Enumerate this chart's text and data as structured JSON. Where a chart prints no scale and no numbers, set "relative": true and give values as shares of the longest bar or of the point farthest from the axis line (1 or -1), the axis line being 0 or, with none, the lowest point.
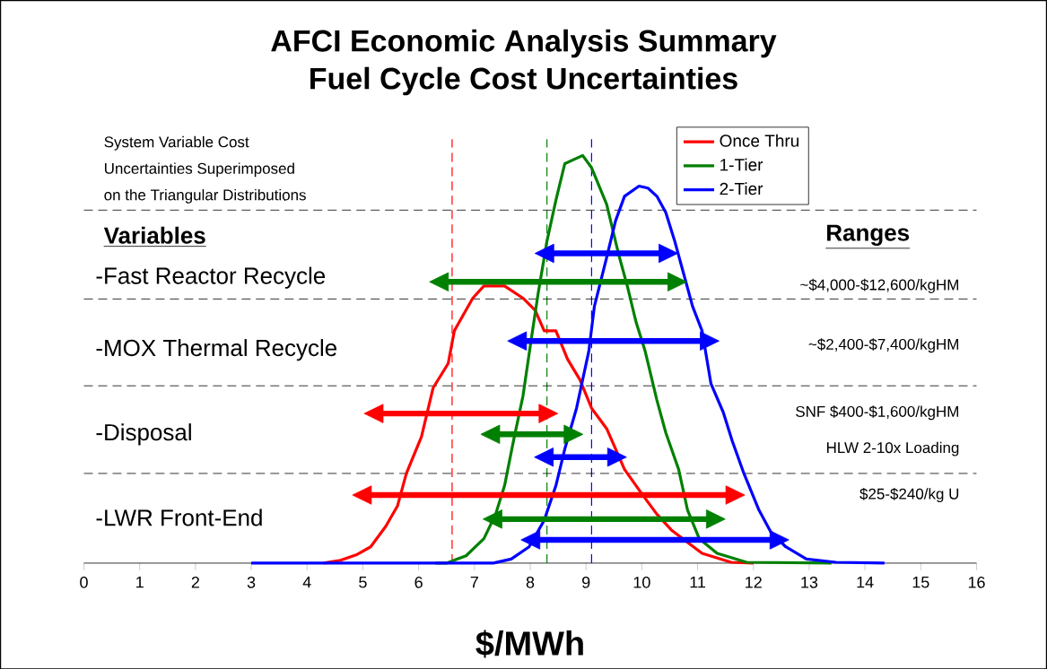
{
  "chart_data": {
    "type": "line",
    "title": "AFCI Economic Analysis Summary",
    "subtitle": "Fuel Cycle Cost Uncertainties",
    "xlabel": "$/MWh",
    "relative": true,
    "xlim": [
      0,
      16
    ],
    "xticks": [
      0,
      1,
      2,
      3,
      4,
      5,
      6,
      7,
      8,
      9,
      10,
      11,
      12,
      13,
      14,
      15,
      16
    ],
    "tick_labels": "x",
    "legend": "top",
    "grid": false,
    "marker": "none",
    "series": [
      {
        "name": "Once Thru",
        "color": "#ff0000",
        "x": [
          4.3,
          4.6,
          4.88,
          5.14,
          5.41,
          5.62,
          5.78,
          6.05,
          6.26,
          6.53,
          6.64,
          6.97,
          7.17,
          7.54,
          7.87,
          8.09,
          8.25,
          8.46,
          8.67,
          8.89,
          9.1,
          9.37,
          9.69,
          10.0,
          10.27,
          10.54,
          11.08,
          11.6,
          12.0
        ],
        "values": [
          0,
          0.007,
          0.02,
          0.04,
          0.09,
          0.14,
          0.22,
          0.31,
          0.43,
          0.49,
          0.57,
          0.65,
          0.68,
          0.68,
          0.65,
          0.62,
          0.57,
          0.57,
          0.5,
          0.45,
          0.38,
          0.33,
          0.23,
          0.17,
          0.12,
          0.08,
          0.024,
          0.002,
          0
        ]
      },
      {
        "name": "1-Tier",
        "color": "#008000",
        "x": [
          6.3,
          6.5,
          6.85,
          7.17,
          7.38,
          7.54,
          7.7,
          7.87,
          8.03,
          8.14,
          8.3,
          8.46,
          8.62,
          8.94,
          9.1,
          9.37,
          9.58,
          9.74,
          9.9,
          10.06,
          10.27,
          10.43,
          10.66,
          10.82,
          11.03,
          11.35,
          11.88,
          13.4
        ],
        "values": [
          0,
          0,
          0.018,
          0.06,
          0.12,
          0.19,
          0.3,
          0.41,
          0.56,
          0.66,
          0.79,
          0.89,
          0.98,
          1.0,
          0.97,
          0.88,
          0.76,
          0.68,
          0.59,
          0.52,
          0.4,
          0.32,
          0.23,
          0.13,
          0.06,
          0.024,
          0.002,
          0
        ]
      },
      {
        "name": "2-Tier",
        "color": "#0000ff",
        "x": [
          3,
          7.34,
          7.66,
          7.98,
          8.25,
          8.46,
          8.62,
          8.83,
          9.05,
          9.15,
          9.37,
          9.53,
          9.69,
          9.95,
          10.11,
          10.27,
          10.43,
          10.59,
          10.75,
          10.91,
          11.08,
          11.24,
          11.46,
          11.62,
          11.83,
          12.1,
          12.31,
          12.58,
          12.95,
          13.48,
          14.35
        ],
        "values": [
          0,
          0,
          0.01,
          0.04,
          0.105,
          0.19,
          0.28,
          0.38,
          0.52,
          0.63,
          0.75,
          0.84,
          0.9,
          0.925,
          0.92,
          0.9,
          0.86,
          0.79,
          0.71,
          0.63,
          0.57,
          0.44,
          0.37,
          0.3,
          0.22,
          0.13,
          0.077,
          0.04,
          0.01,
          0.002,
          0
        ]
      },
      {
        "color": "#0000ff",
        "marker": "triangle",
        "x": [
          8.31,
          10.42
        ],
        "values": [
          0.76,
          0.76
        ]
      },
      {
        "color": "#008000",
        "marker": "triangle",
        "x": [
          6.42,
          10.58
        ],
        "values": [
          0.69,
          0.69
        ]
      },
      {
        "color": "#0000ff",
        "marker": "triangle",
        "x": [
          7.82,
          11.16
        ],
        "values": [
          0.545,
          0.545
        ]
      },
      {
        "color": "#ff0000",
        "marker": "triangle",
        "x": [
          5.25,
          8.27
        ],
        "values": [
          0.367,
          0.367
        ]
      },
      {
        "color": "#008000",
        "marker": "triangle",
        "x": [
          7.34,
          8.72
        ],
        "values": [
          0.316,
          0.316
        ]
      },
      {
        "color": "#0000ff",
        "marker": "triangle",
        "x": [
          8.3,
          9.5
        ],
        "values": [
          0.26,
          0.26
        ]
      },
      {
        "color": "#ff0000",
        "marker": "triangle",
        "x": [
          5.04,
          11.62
        ],
        "values": [
          0.167,
          0.167
        ]
      },
      {
        "color": "#008000",
        "marker": "triangle",
        "x": [
          7.38,
          11.27
        ],
        "values": [
          0.108,
          0.108
        ]
      },
      {
        "color": "#0000ff",
        "marker": "triangle",
        "x": [
          8.06,
          12.41
        ],
        "values": [
          0.057,
          0.057
        ]
      }
    ],
    "ref_lines": [
      {
        "axis": "x",
        "value": 6.6,
        "color": "#ff0000",
        "line_style": "dashed"
      },
      {
        "axis": "x",
        "value": 8.3,
        "color": "#008000",
        "line_style": "dashed"
      },
      {
        "axis": "x",
        "value": 9.1,
        "color": "#0000ff",
        "line_style": "dashed"
      },
      {
        "axis": "y",
        "value": 0.866,
        "color": "#000000",
        "line_style": "dashed"
      },
      {
        "axis": "y",
        "value": 0.648,
        "color": "#000000",
        "line_style": "dashed"
      },
      {
        "axis": "y",
        "value": 0.435,
        "color": "#000000",
        "line_style": "dashed"
      },
      {
        "axis": "y",
        "value": 0.22,
        "color": "#000000",
        "line_style": "dashed"
      }
    ],
    "annotations": [
      "System Variable Cost",
      "Uncertainties Superimposed",
      "on the Triangular Distributions",
      "Variables",
      "-Fast Reactor Recycle",
      "-MOX Thermal Recycle",
      "-Disposal",
      "-LWR Front-End",
      "Ranges",
      "~$4,000-$12,600/kgHM",
      "~$2,400-$7,400/kgHM",
      "SNF $400-$1,600/kgHM",
      "HLW 2-10x Loading",
      "$25-$240/kg U"
    ]
  }
}
